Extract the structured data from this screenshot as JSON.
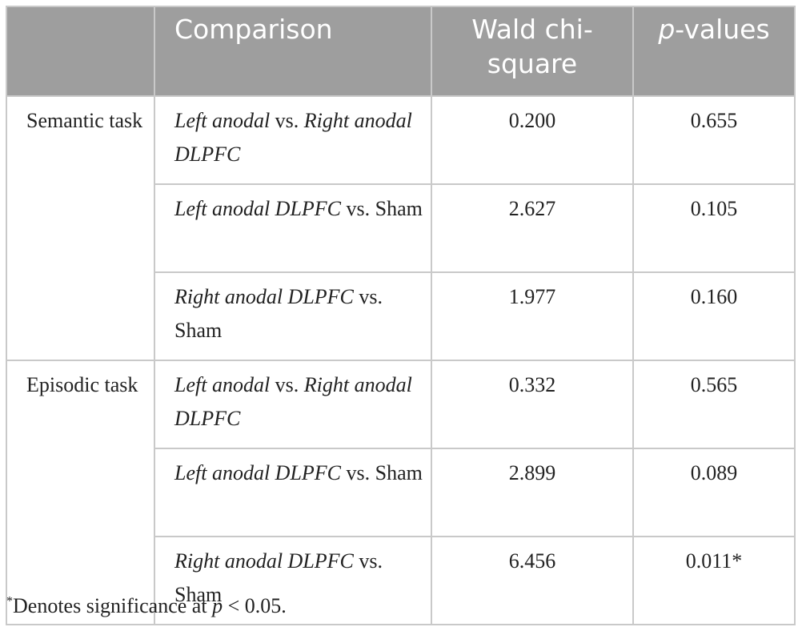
{
  "table": {
    "header": [
      "",
      "Comparison",
      "Wald chi-square",
      [
        "p",
        "-values"
      ]
    ],
    "groups": [
      {
        "label": "Semantic task",
        "rows": [
          {
            "comparison": [
              "Left anodal",
              " vs. ",
              "Right anodal DLPFC"
            ],
            "wald": "0.200",
            "p": "0.655"
          },
          {
            "comparison": [
              "Left anodal DLPFC",
              " vs. Sham"
            ],
            "wald": "2.627",
            "p": "0.105"
          },
          {
            "comparison": [
              "Right anodal DLPFC",
              " vs. Sham"
            ],
            "wald": "1.977",
            "p": "0.160"
          }
        ]
      },
      {
        "label": "Episodic task",
        "rows": [
          {
            "comparison": [
              "Left anodal",
              " vs. ",
              "Right anodal DLPFC"
            ],
            "wald": "0.332",
            "p": "0.565"
          },
          {
            "comparison": [
              "Left anodal DLPFC",
              " vs. Sham"
            ],
            "wald": "2.899",
            "p": "0.089"
          },
          {
            "comparison": [
              "Right anodal DLPFC",
              " vs. Sham"
            ],
            "wald": "6.456",
            "p": "0.011*"
          }
        ]
      }
    ]
  },
  "footnote": [
    "*",
    "Denotes significance at ",
    "p",
    " < 0.05."
  ]
}
